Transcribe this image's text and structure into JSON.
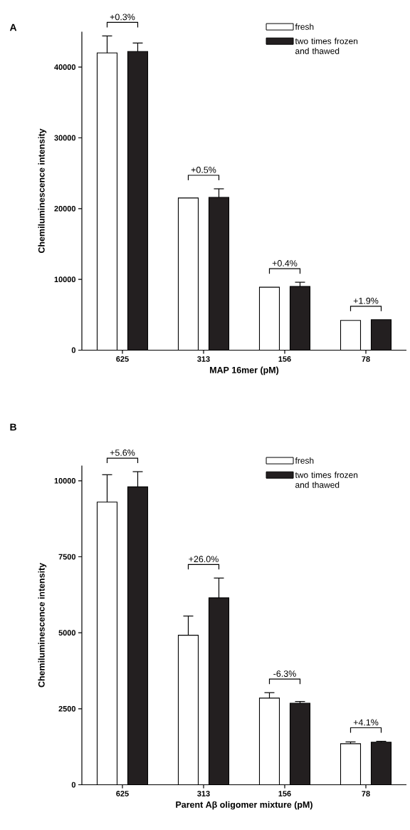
{
  "chart_data": [
    {
      "type": "bar",
      "title": "A",
      "xlabel": "MAP 16mer (pM)",
      "ylabel": "Chemiluminescence intensity",
      "categories": [
        "625",
        "313",
        "156",
        "78"
      ],
      "series": [
        {
          "name": "fresh",
          "color": "#ffffff",
          "values": [
            42000,
            21500,
            8900,
            4200
          ],
          "errors": [
            [
              42000,
              44400
            ],
            null,
            null,
            null
          ]
        },
        {
          "name": "two times frozen and thawed",
          "color": "#231f20",
          "values": [
            42200,
            21600,
            9000,
            4300
          ],
          "errors": [
            [
              42200,
              43400
            ],
            [
              21600,
              22800
            ],
            [
              9000,
              9600
            ],
            null
          ]
        }
      ],
      "ylim": [
        0,
        45000
      ],
      "yticks": [
        0,
        10000,
        20000,
        30000,
        40000
      ],
      "legend": "top right",
      "annotations": [
        "+0.3%",
        "+0.5%",
        "+0.4%",
        "+1.9%"
      ]
    },
    {
      "type": "bar",
      "title": "B",
      "xlabel": "Parent Aβ oligomer mixture (pM)",
      "ylabel": "Chemiluminescence intensity",
      "categories": [
        "625",
        "313",
        "156",
        "78"
      ],
      "series": [
        {
          "name": "fresh",
          "color": "#ffffff",
          "values": [
            9300,
            4920,
            2850,
            1350
          ],
          "errors": [
            [
              9300,
              10200
            ],
            [
              4920,
              5550
            ],
            [
              2850,
              3030
            ],
            [
              1350,
              1410
            ]
          ]
        },
        {
          "name": "two times frozen and thawed",
          "color": "#231f20",
          "values": [
            9800,
            6150,
            2680,
            1400
          ],
          "errors": [
            [
              9800,
              10300
            ],
            [
              6150,
              6800
            ],
            [
              2680,
              2740
            ],
            [
              1400,
              1430
            ]
          ]
        }
      ],
      "ylim": [
        0,
        10500
      ],
      "yticks": [
        0,
        2500,
        5000,
        7500,
        10000
      ],
      "legend": "top right",
      "annotations": [
        "+5.6%",
        "+26.0%",
        "-6.3%",
        "+4.1%"
      ]
    }
  ]
}
